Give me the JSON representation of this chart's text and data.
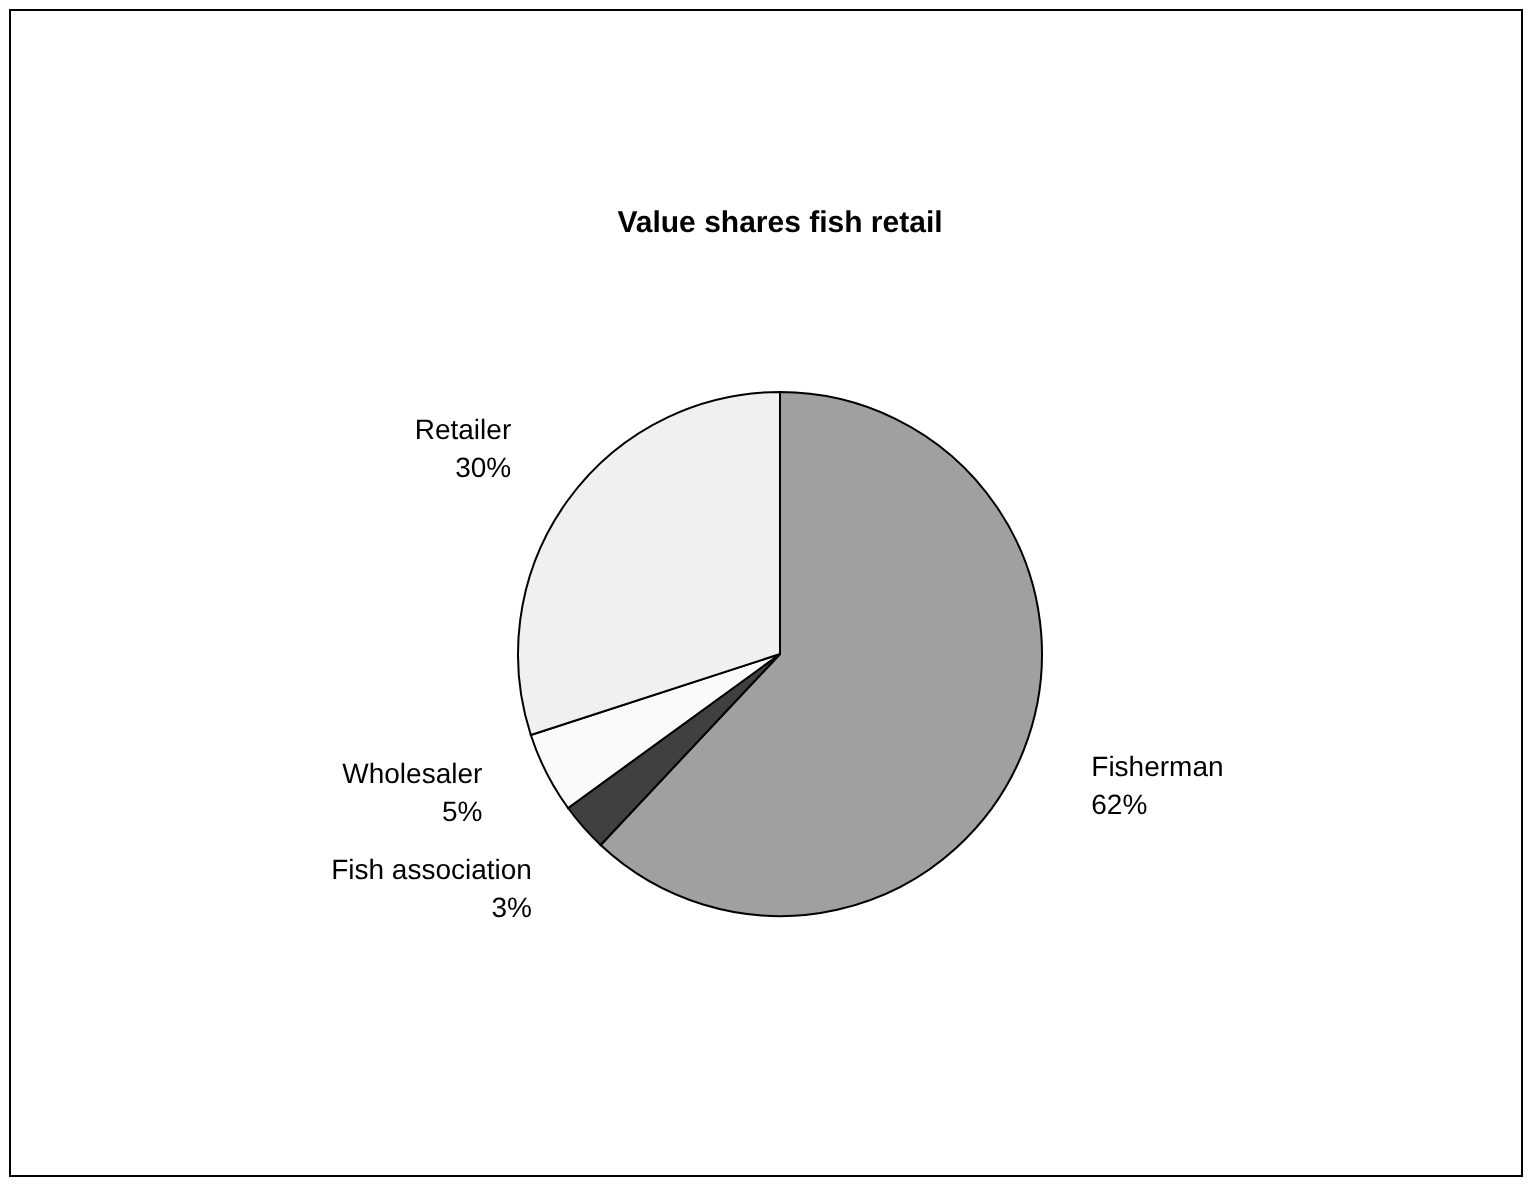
{
  "chart_data": {
    "type": "pie",
    "title": "Value shares fish retail",
    "categories": [
      "Fisherman",
      "Fish association",
      "Wholesaler",
      "Retailer"
    ],
    "values": [
      62,
      3,
      5,
      30
    ],
    "colors": [
      "#a0a0a0",
      "#404040",
      "#fafafa",
      "#f0f0f0"
    ],
    "value_labels": [
      "62%",
      "3%",
      "5%",
      "30%"
    ]
  }
}
